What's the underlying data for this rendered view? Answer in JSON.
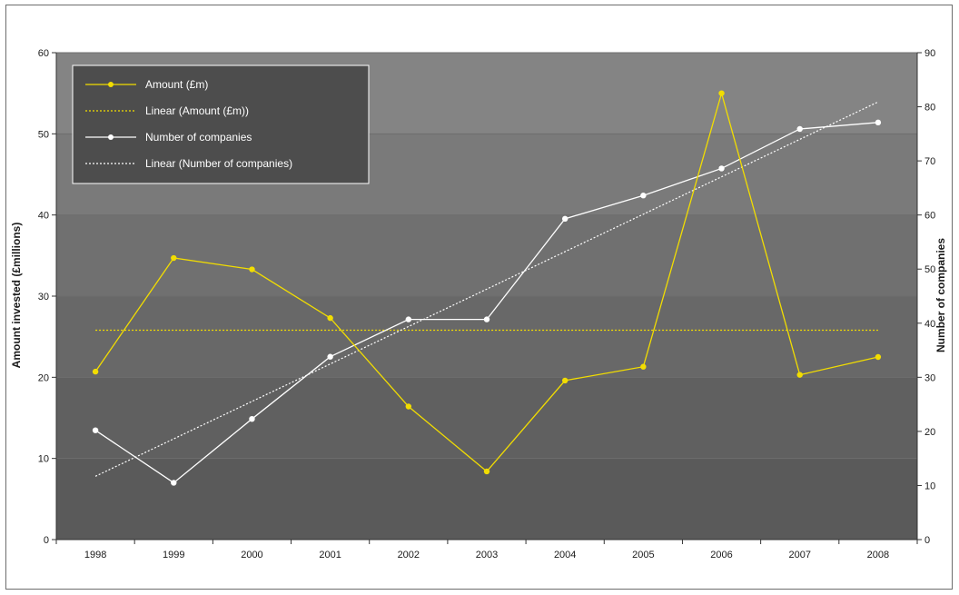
{
  "chart_data": {
    "type": "line",
    "categories": [
      "1998",
      "1999",
      "2000",
      "2001",
      "2002",
      "2003",
      "2004",
      "2005",
      "2006",
      "2007",
      "2008"
    ],
    "y_left": {
      "label": "Amount invested (£millions)",
      "ylim": [
        0,
        60
      ],
      "ticks": [
        0,
        10,
        20,
        30,
        40,
        50,
        60
      ]
    },
    "y_right": {
      "label": "Number of companies",
      "ylim": [
        0,
        90
      ],
      "ticks": [
        0,
        10,
        20,
        30,
        40,
        50,
        60,
        70,
        80,
        90
      ]
    },
    "series": [
      {
        "name": "Amount (£m)",
        "axis": "left",
        "color": "#f2dd00",
        "style": "solid-markers",
        "values": [
          20.7,
          34.7,
          33.3,
          27.3,
          16.4,
          8.4,
          19.6,
          21.3,
          55.0,
          20.3,
          22.5
        ]
      },
      {
        "name": "Linear (Amount (£m))",
        "axis": "left",
        "color": "#f2dd00",
        "style": "dotted",
        "values": [
          25.8,
          25.8,
          25.8,
          25.8,
          25.8,
          25.8,
          25.8,
          25.8,
          25.8,
          25.8,
          25.8
        ]
      },
      {
        "name": "Number of companies",
        "axis": "right",
        "color": "#ffffff",
        "style": "solid-markers",
        "values": [
          20.2,
          10.5,
          22.3,
          33.8,
          40.7,
          40.7,
          59.3,
          63.6,
          68.6,
          75.9,
          77.1
        ]
      },
      {
        "name": "Linear (Number of companies)",
        "axis": "right",
        "color": "#ffffff",
        "style": "dotted",
        "values": [
          11.7,
          18.6,
          25.5,
          32.5,
          39.4,
          46.3,
          53.2,
          60.1,
          67.1,
          74.0,
          80.9
        ]
      }
    ],
    "grid": true,
    "legend_position": "top-left",
    "band_colors": [
      "#5a5a5a",
      "#606060",
      "#686868",
      "#707070",
      "#7a7a7a",
      "#848484"
    ]
  }
}
